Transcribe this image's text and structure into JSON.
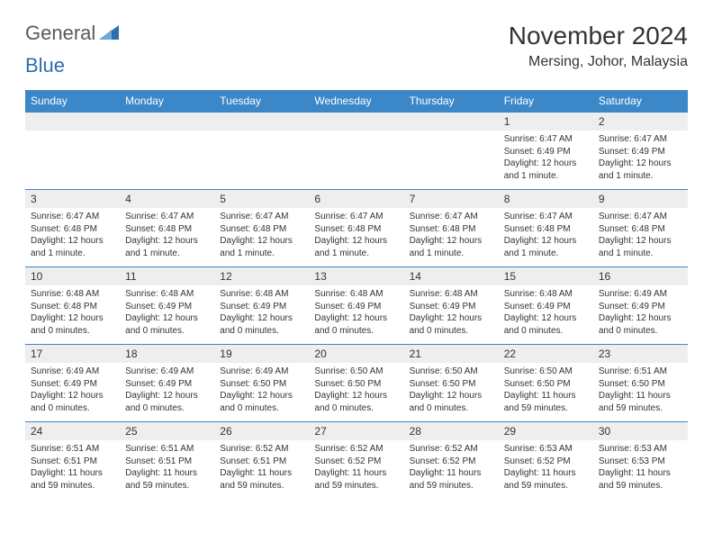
{
  "brand": {
    "text1": "General",
    "text2": "Blue",
    "text1_color": "#7a7a7a",
    "text2_color": "#2b6fb0",
    "icon_color": "#2b6fb0"
  },
  "title": "November 2024",
  "location": "Mersing, Johor, Malaysia",
  "colors": {
    "header_bg": "#3b87c8",
    "header_fg": "#ffffff",
    "daynum_bg": "#eeeeee",
    "text": "#333333",
    "rule": "#3b87c8",
    "page_bg": "#ffffff"
  },
  "fonts": {
    "title_size": 28,
    "location_size": 16,
    "dayheader_size": 12,
    "daynum_size": 12,
    "info_size": 10
  },
  "day_headers": [
    "Sunday",
    "Monday",
    "Tuesday",
    "Wednesday",
    "Thursday",
    "Friday",
    "Saturday"
  ],
  "weeks": [
    [
      {
        "n": "",
        "lines": []
      },
      {
        "n": "",
        "lines": []
      },
      {
        "n": "",
        "lines": []
      },
      {
        "n": "",
        "lines": []
      },
      {
        "n": "",
        "lines": []
      },
      {
        "n": "1",
        "lines": [
          "Sunrise: 6:47 AM",
          "Sunset: 6:49 PM",
          "Daylight: 12 hours and 1 minute."
        ]
      },
      {
        "n": "2",
        "lines": [
          "Sunrise: 6:47 AM",
          "Sunset: 6:49 PM",
          "Daylight: 12 hours and 1 minute."
        ]
      }
    ],
    [
      {
        "n": "3",
        "lines": [
          "Sunrise: 6:47 AM",
          "Sunset: 6:48 PM",
          "Daylight: 12 hours and 1 minute."
        ]
      },
      {
        "n": "4",
        "lines": [
          "Sunrise: 6:47 AM",
          "Sunset: 6:48 PM",
          "Daylight: 12 hours and 1 minute."
        ]
      },
      {
        "n": "5",
        "lines": [
          "Sunrise: 6:47 AM",
          "Sunset: 6:48 PM",
          "Daylight: 12 hours and 1 minute."
        ]
      },
      {
        "n": "6",
        "lines": [
          "Sunrise: 6:47 AM",
          "Sunset: 6:48 PM",
          "Daylight: 12 hours and 1 minute."
        ]
      },
      {
        "n": "7",
        "lines": [
          "Sunrise: 6:47 AM",
          "Sunset: 6:48 PM",
          "Daylight: 12 hours and 1 minute."
        ]
      },
      {
        "n": "8",
        "lines": [
          "Sunrise: 6:47 AM",
          "Sunset: 6:48 PM",
          "Daylight: 12 hours and 1 minute."
        ]
      },
      {
        "n": "9",
        "lines": [
          "Sunrise: 6:47 AM",
          "Sunset: 6:48 PM",
          "Daylight: 12 hours and 1 minute."
        ]
      }
    ],
    [
      {
        "n": "10",
        "lines": [
          "Sunrise: 6:48 AM",
          "Sunset: 6:48 PM",
          "Daylight: 12 hours and 0 minutes."
        ]
      },
      {
        "n": "11",
        "lines": [
          "Sunrise: 6:48 AM",
          "Sunset: 6:49 PM",
          "Daylight: 12 hours and 0 minutes."
        ]
      },
      {
        "n": "12",
        "lines": [
          "Sunrise: 6:48 AM",
          "Sunset: 6:49 PM",
          "Daylight: 12 hours and 0 minutes."
        ]
      },
      {
        "n": "13",
        "lines": [
          "Sunrise: 6:48 AM",
          "Sunset: 6:49 PM",
          "Daylight: 12 hours and 0 minutes."
        ]
      },
      {
        "n": "14",
        "lines": [
          "Sunrise: 6:48 AM",
          "Sunset: 6:49 PM",
          "Daylight: 12 hours and 0 minutes."
        ]
      },
      {
        "n": "15",
        "lines": [
          "Sunrise: 6:48 AM",
          "Sunset: 6:49 PM",
          "Daylight: 12 hours and 0 minutes."
        ]
      },
      {
        "n": "16",
        "lines": [
          "Sunrise: 6:49 AM",
          "Sunset: 6:49 PM",
          "Daylight: 12 hours and 0 minutes."
        ]
      }
    ],
    [
      {
        "n": "17",
        "lines": [
          "Sunrise: 6:49 AM",
          "Sunset: 6:49 PM",
          "Daylight: 12 hours and 0 minutes."
        ]
      },
      {
        "n": "18",
        "lines": [
          "Sunrise: 6:49 AM",
          "Sunset: 6:49 PM",
          "Daylight: 12 hours and 0 minutes."
        ]
      },
      {
        "n": "19",
        "lines": [
          "Sunrise: 6:49 AM",
          "Sunset: 6:50 PM",
          "Daylight: 12 hours and 0 minutes."
        ]
      },
      {
        "n": "20",
        "lines": [
          "Sunrise: 6:50 AM",
          "Sunset: 6:50 PM",
          "Daylight: 12 hours and 0 minutes."
        ]
      },
      {
        "n": "21",
        "lines": [
          "Sunrise: 6:50 AM",
          "Sunset: 6:50 PM",
          "Daylight: 12 hours and 0 minutes."
        ]
      },
      {
        "n": "22",
        "lines": [
          "Sunrise: 6:50 AM",
          "Sunset: 6:50 PM",
          "Daylight: 11 hours and 59 minutes."
        ]
      },
      {
        "n": "23",
        "lines": [
          "Sunrise: 6:51 AM",
          "Sunset: 6:50 PM",
          "Daylight: 11 hours and 59 minutes."
        ]
      }
    ],
    [
      {
        "n": "24",
        "lines": [
          "Sunrise: 6:51 AM",
          "Sunset: 6:51 PM",
          "Daylight: 11 hours and 59 minutes."
        ]
      },
      {
        "n": "25",
        "lines": [
          "Sunrise: 6:51 AM",
          "Sunset: 6:51 PM",
          "Daylight: 11 hours and 59 minutes."
        ]
      },
      {
        "n": "26",
        "lines": [
          "Sunrise: 6:52 AM",
          "Sunset: 6:51 PM",
          "Daylight: 11 hours and 59 minutes."
        ]
      },
      {
        "n": "27",
        "lines": [
          "Sunrise: 6:52 AM",
          "Sunset: 6:52 PM",
          "Daylight: 11 hours and 59 minutes."
        ]
      },
      {
        "n": "28",
        "lines": [
          "Sunrise: 6:52 AM",
          "Sunset: 6:52 PM",
          "Daylight: 11 hours and 59 minutes."
        ]
      },
      {
        "n": "29",
        "lines": [
          "Sunrise: 6:53 AM",
          "Sunset: 6:52 PM",
          "Daylight: 11 hours and 59 minutes."
        ]
      },
      {
        "n": "30",
        "lines": [
          "Sunrise: 6:53 AM",
          "Sunset: 6:53 PM",
          "Daylight: 11 hours and 59 minutes."
        ]
      }
    ]
  ]
}
